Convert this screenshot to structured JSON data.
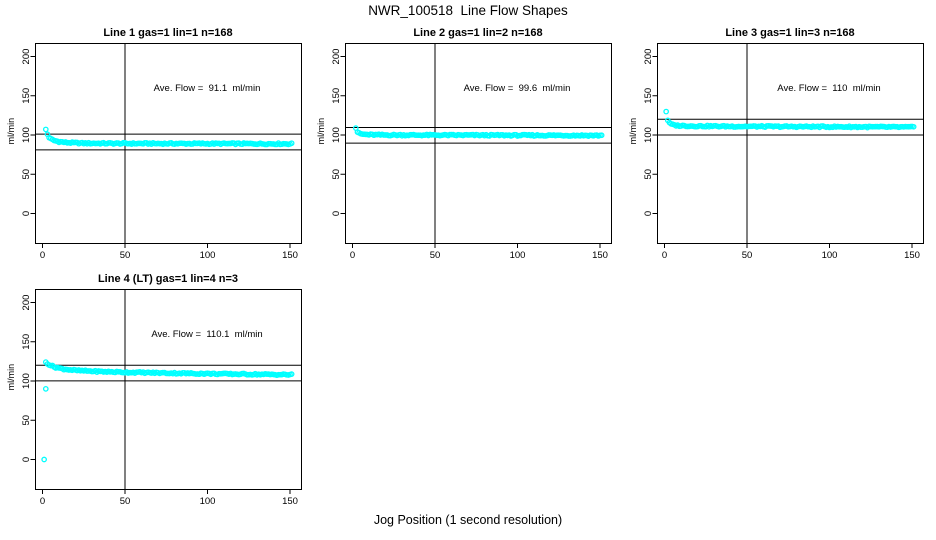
{
  "chart_data": {
    "type": "scatter",
    "figure_title": "NWR_100518  Line Flow Shapes",
    "x_axis_label": "Jog Position (1 second resolution)",
    "y_axis_label": "ml/min",
    "xlim": [
      0,
      150
    ],
    "ylim": [
      0,
      200
    ],
    "x_ticks": [
      0,
      50,
      100,
      150
    ],
    "y_ticks": [
      0,
      50,
      100,
      150,
      200
    ],
    "grid": false,
    "legend": "none",
    "point_color": "#00ffff",
    "axis_color": "#000000",
    "vline_x": 50,
    "panels": [
      {
        "title": "Line 1 gas=1 lin=1 n=168",
        "gas": 1,
        "lin": 1,
        "n": 168,
        "annotation": "Ave. Flow =  91.1  ml/min",
        "ave_flow": 91.1,
        "hlines": [
          101.1,
          81.1
        ],
        "band_keypoints": [
          [
            2,
            107
          ],
          [
            3,
            101
          ],
          [
            4,
            97
          ],
          [
            5,
            95
          ],
          [
            7,
            93
          ],
          [
            10,
            91.5
          ],
          [
            15,
            90.3
          ],
          [
            25,
            89.5
          ],
          [
            50,
            89.2
          ],
          [
            100,
            89.0
          ],
          [
            151,
            88.8
          ]
        ],
        "outliers": []
      },
      {
        "title": "Line 2 gas=1 lin=2 n=168",
        "gas": 1,
        "lin": 2,
        "n": 168,
        "annotation": "Ave. Flow =  99.6  ml/min",
        "ave_flow": 99.6,
        "hlines": [
          109.6,
          89.6
        ],
        "band_keypoints": [
          [
            2,
            109
          ],
          [
            3,
            104
          ],
          [
            4,
            102
          ],
          [
            6,
            101
          ],
          [
            10,
            100.4
          ],
          [
            20,
            100
          ],
          [
            60,
            99.8
          ],
          [
            151,
            99.4
          ]
        ],
        "outliers": []
      },
      {
        "title": "Line 3 gas=1 lin=3 n=168",
        "gas": 1,
        "lin": 3,
        "n": 168,
        "annotation": "Ave. Flow =  110  ml/min",
        "ave_flow": 110,
        "hlines": [
          120,
          100
        ],
        "band_keypoints": [
          [
            1,
            130
          ],
          [
            2,
            119
          ],
          [
            3,
            115
          ],
          [
            5,
            113
          ],
          [
            8,
            112
          ],
          [
            15,
            111.5
          ],
          [
            40,
            111
          ],
          [
            100,
            110.5
          ],
          [
            151,
            110
          ]
        ],
        "outliers": []
      },
      {
        "title": "Line 4 (LT) gas=1 lin=4 n=3",
        "gas": 1,
        "lin": 4,
        "n": 3,
        "annotation": "Ave. Flow =  110.1  ml/min",
        "ave_flow": 110.1,
        "hlines": [
          120.1,
          100.1
        ],
        "band_keypoints": [
          [
            2,
            124
          ],
          [
            4,
            121
          ],
          [
            7,
            118
          ],
          [
            12,
            115.5
          ],
          [
            20,
            113.5
          ],
          [
            35,
            112
          ],
          [
            53,
            111
          ],
          [
            80,
            110
          ],
          [
            110,
            109
          ],
          [
            151,
            108
          ]
        ],
        "outliers": [
          [
            1,
            0
          ],
          [
            2,
            90
          ]
        ]
      }
    ]
  }
}
